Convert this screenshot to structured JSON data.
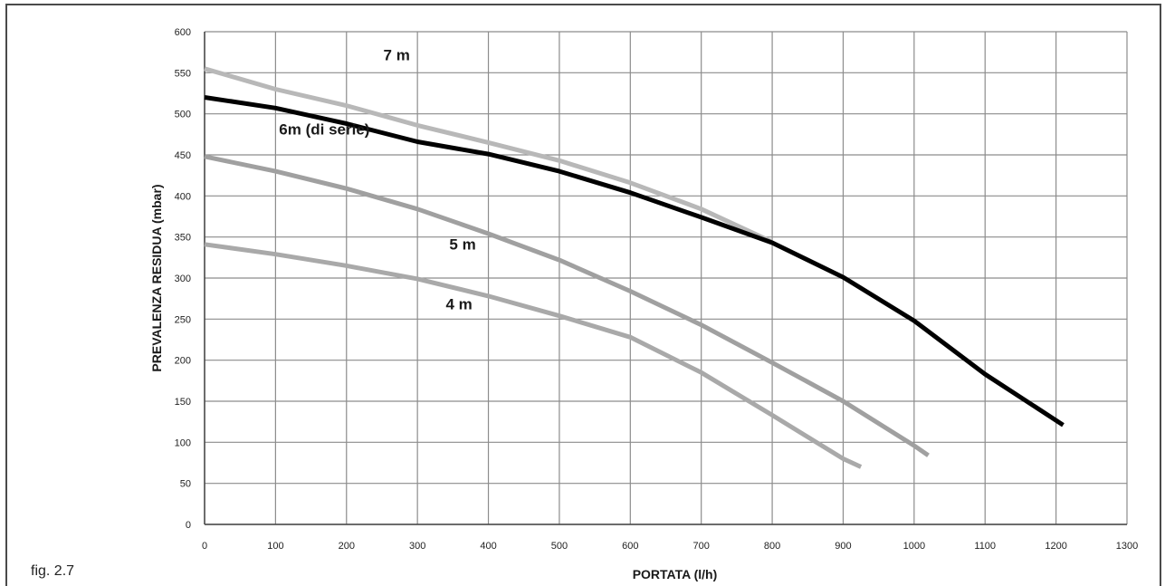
{
  "figure_label": "fig. 2.7",
  "chart_data": {
    "type": "line",
    "xlabel": "PORTATA (l/h)",
    "ylabel": "PREVALENZA RESIDUA (mbar)",
    "xlim": [
      0,
      1300
    ],
    "ylim": [
      0,
      600
    ],
    "xticks": [
      0,
      100,
      200,
      300,
      400,
      500,
      600,
      700,
      800,
      900,
      1000,
      1100,
      1200,
      1300
    ],
    "yticks": [
      0,
      50,
      100,
      150,
      200,
      250,
      300,
      350,
      400,
      450,
      500,
      550,
      600
    ],
    "grid": true,
    "series": [
      {
        "name": "7 m",
        "color": "#b8b8b8",
        "points": [
          [
            0,
            555
          ],
          [
            100,
            530
          ],
          [
            200,
            510
          ],
          [
            300,
            486
          ],
          [
            400,
            465
          ],
          [
            500,
            443
          ],
          [
            600,
            416
          ],
          [
            700,
            384
          ],
          [
            800,
            344
          ]
        ]
      },
      {
        "name": "4 m",
        "color": "#a9a9a9",
        "points": [
          [
            0,
            341
          ],
          [
            100,
            329
          ],
          [
            200,
            315
          ],
          [
            300,
            299
          ],
          [
            400,
            278
          ],
          [
            500,
            254
          ],
          [
            600,
            228
          ],
          [
            700,
            185
          ],
          [
            800,
            133
          ],
          [
            900,
            80
          ],
          [
            925,
            70
          ]
        ]
      },
      {
        "name": "5 m",
        "color": "#a0a0a0",
        "points": [
          [
            0,
            448
          ],
          [
            100,
            430
          ],
          [
            200,
            409
          ],
          [
            300,
            384
          ],
          [
            400,
            354
          ],
          [
            500,
            322
          ],
          [
            600,
            284
          ],
          [
            700,
            243
          ],
          [
            800,
            197
          ],
          [
            900,
            150
          ],
          [
            1000,
            96
          ],
          [
            1020,
            84
          ]
        ]
      },
      {
        "name": "6m (di serie)",
        "color": "#000000",
        "points": [
          [
            0,
            520
          ],
          [
            100,
            507
          ],
          [
            200,
            488
          ],
          [
            300,
            466
          ],
          [
            400,
            451
          ],
          [
            500,
            430
          ],
          [
            600,
            404
          ],
          [
            700,
            374
          ],
          [
            800,
            343
          ],
          [
            900,
            301
          ],
          [
            1000,
            248
          ],
          [
            1100,
            183
          ],
          [
            1210,
            121
          ]
        ]
      }
    ]
  }
}
